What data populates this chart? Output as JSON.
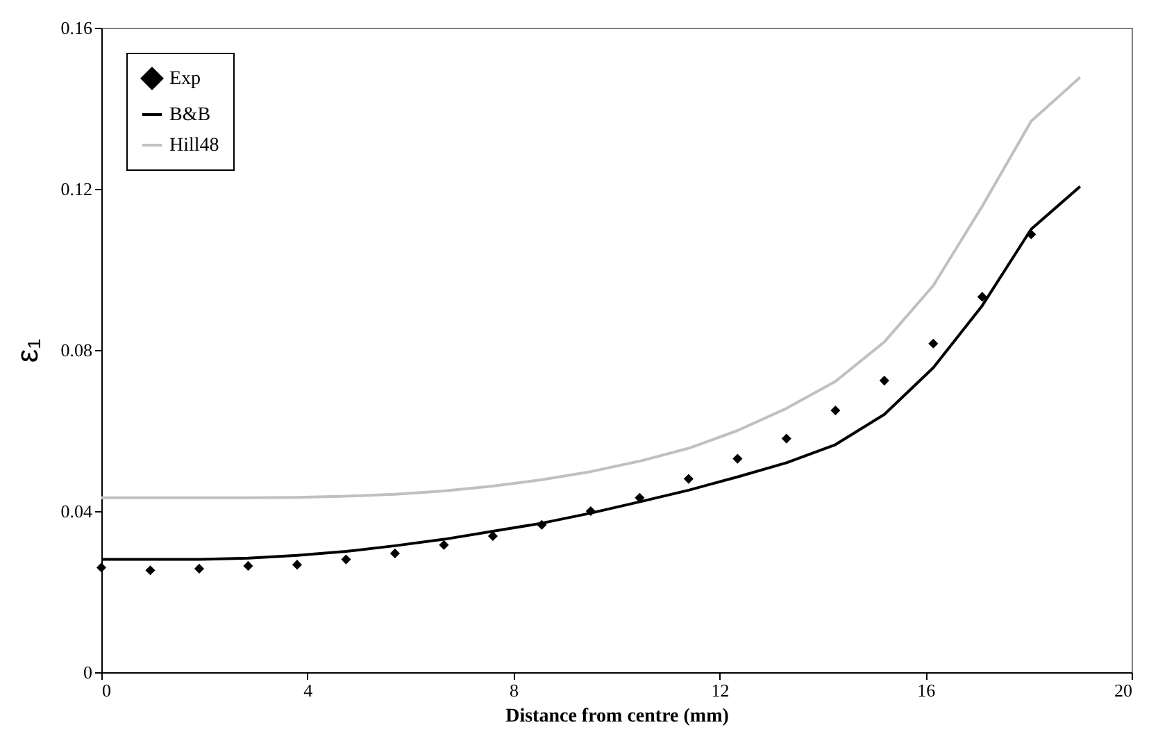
{
  "chart_data": {
    "type": "line",
    "xlabel": "Distance from centre (mm)",
    "ylabel": "ε₁",
    "xlim": [
      0,
      20
    ],
    "xticks": [
      0,
      4,
      8,
      12,
      16,
      20
    ],
    "ylim": [
      0,
      0.16
    ],
    "yticks": [
      0,
      0.04,
      0.08,
      0.12,
      0.16
    ],
    "grid": false,
    "legend": "top left",
    "line_style": "solid",
    "series": [
      {
        "name": "Exp",
        "type": "scatter",
        "marker": "diamond",
        "color": "#000000",
        "x": [
          0,
          0.95,
          1.9,
          2.85,
          3.8,
          4.75,
          5.7,
          6.65,
          7.6,
          8.55,
          9.5,
          10.45,
          11.4,
          12.35,
          13.3,
          14.25,
          15.2,
          16.15,
          17.1,
          18.05
        ],
        "values": [
          0.026,
          0.0253,
          0.0257,
          0.0264,
          0.0267,
          0.028,
          0.0295,
          0.0316,
          0.0338,
          0.0366,
          0.04,
          0.0433,
          0.048,
          0.053,
          0.058,
          0.065,
          0.0724,
          0.0816,
          0.0932,
          0.1087
        ]
      },
      {
        "name": "B&B",
        "color": "#000000",
        "x": [
          0,
          0.95,
          1.9,
          2.85,
          3.8,
          4.75,
          5.7,
          6.65,
          7.6,
          8.55,
          9.5,
          10.45,
          11.4,
          12.35,
          13.3,
          14.25,
          15.2,
          16.15,
          17.1,
          18.05,
          19
        ],
        "values": [
          0.028,
          0.028,
          0.028,
          0.0283,
          0.029,
          0.03,
          0.0314,
          0.033,
          0.035,
          0.037,
          0.0395,
          0.0423,
          0.0452,
          0.0485,
          0.052,
          0.0565,
          0.064,
          0.0756,
          0.091,
          0.11,
          0.1206
        ]
      },
      {
        "name": "Hill48",
        "color": "#c0c0c0",
        "x": [
          0,
          0.95,
          1.9,
          2.85,
          3.8,
          4.75,
          5.7,
          6.65,
          7.6,
          8.55,
          9.5,
          10.45,
          11.4,
          12.35,
          13.3,
          14.25,
          15.2,
          16.15,
          17.1,
          18.05,
          19
        ],
        "values": [
          0.0433,
          0.0433,
          0.0433,
          0.0433,
          0.0434,
          0.0437,
          0.0442,
          0.045,
          0.0462,
          0.0478,
          0.0498,
          0.0524,
          0.0556,
          0.06,
          0.0655,
          0.0722,
          0.082,
          0.096,
          0.1157,
          0.1368,
          0.1477
        ]
      }
    ]
  }
}
